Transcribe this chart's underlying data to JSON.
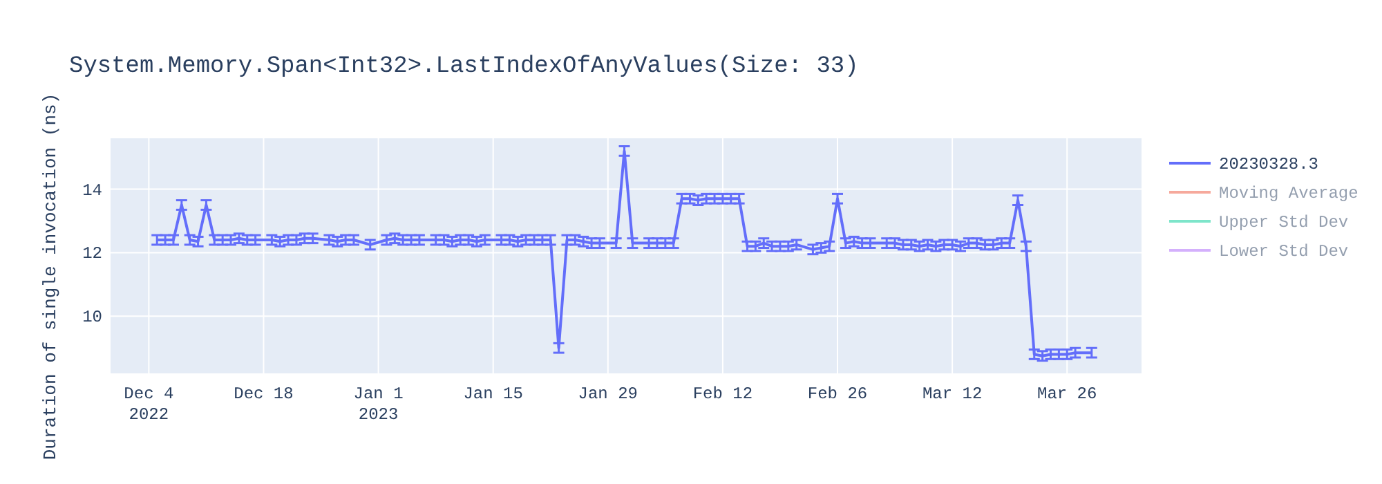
{
  "chart_data": {
    "type": "line",
    "title": "System.Memory.Span<Int32>.LastIndexOfAnyValues(Size: 33)",
    "ylabel": "Duration of single invocation (ns)",
    "xlim": [
      "2022-11-29T08:00",
      "2023-04-04T02:00"
    ],
    "xticks": [
      {
        "value": "2022-12-04",
        "label": "Dec 4\n2022"
      },
      {
        "value": "2022-12-18",
        "label": "Dec 18"
      },
      {
        "value": "2023-01-01",
        "label": "Jan 1\n2023"
      },
      {
        "value": "2023-01-15",
        "label": "Jan 15"
      },
      {
        "value": "2023-01-29",
        "label": "Jan 29"
      },
      {
        "value": "2023-02-12",
        "label": "Feb 12"
      },
      {
        "value": "2023-02-26",
        "label": "Feb 26"
      },
      {
        "value": "2023-03-12",
        "label": "Mar 12"
      },
      {
        "value": "2023-03-26",
        "label": "Mar 26"
      }
    ],
    "ylim": [
      8.2,
      15.6
    ],
    "yticks": [
      10,
      12,
      14
    ],
    "grid": true,
    "legend": "top right",
    "series": [
      {
        "name": "20230328.3",
        "color": "#636efa",
        "x": [
          "2022-12-05",
          "2022-12-06",
          "2022-12-07",
          "2022-12-08",
          "2022-12-09",
          "2022-12-10",
          "2022-12-11",
          "2022-12-12",
          "2022-12-13",
          "2022-12-14",
          "2022-12-15",
          "2022-12-16",
          "2022-12-17",
          "2022-12-19",
          "2022-12-20",
          "2022-12-21",
          "2022-12-22",
          "2022-12-23",
          "2022-12-24",
          "2022-12-26",
          "2022-12-27",
          "2022-12-28",
          "2022-12-29",
          "2022-12-31",
          "2023-01-02",
          "2023-01-03",
          "2023-01-04",
          "2023-01-05",
          "2023-01-06",
          "2023-01-08",
          "2023-01-09",
          "2023-01-10",
          "2023-01-11",
          "2023-01-12",
          "2023-01-13",
          "2023-01-14",
          "2023-01-16",
          "2023-01-17",
          "2023-01-18",
          "2023-01-19",
          "2023-01-20",
          "2023-01-21",
          "2023-01-22",
          "2023-01-23",
          "2023-01-24",
          "2023-01-25",
          "2023-01-26",
          "2023-01-27",
          "2023-01-28",
          "2023-01-30",
          "2023-01-31",
          "2023-02-01",
          "2023-02-03",
          "2023-02-04",
          "2023-02-05",
          "2023-02-06",
          "2023-02-07",
          "2023-02-08",
          "2023-02-09",
          "2023-02-10",
          "2023-02-11",
          "2023-02-12",
          "2023-02-13",
          "2023-02-14",
          "2023-02-15",
          "2023-02-16",
          "2023-02-17",
          "2023-02-18",
          "2023-02-19",
          "2023-02-20",
          "2023-02-21",
          "2023-02-23",
          "2023-02-24",
          "2023-02-25",
          "2023-02-26",
          "2023-02-27",
          "2023-02-28",
          "2023-03-01",
          "2023-03-02",
          "2023-03-04",
          "2023-03-05",
          "2023-03-06",
          "2023-03-07",
          "2023-03-08",
          "2023-03-09",
          "2023-03-10",
          "2023-03-11",
          "2023-03-12",
          "2023-03-13",
          "2023-03-14",
          "2023-03-15",
          "2023-03-16",
          "2023-03-17",
          "2023-03-18",
          "2023-03-19",
          "2023-03-20",
          "2023-03-21",
          "2023-03-22",
          "2023-03-23",
          "2023-03-24",
          "2023-03-25",
          "2023-03-26",
          "2023-03-27",
          "2023-03-29"
        ],
        "values": [
          12.4,
          12.4,
          12.4,
          13.5,
          12.4,
          12.35,
          13.5,
          12.4,
          12.4,
          12.4,
          12.45,
          12.4,
          12.4,
          12.4,
          12.35,
          12.4,
          12.4,
          12.45,
          12.45,
          12.4,
          12.35,
          12.4,
          12.4,
          12.25,
          12.4,
          12.45,
          12.4,
          12.4,
          12.4,
          12.4,
          12.4,
          12.35,
          12.4,
          12.4,
          12.35,
          12.4,
          12.4,
          12.4,
          12.35,
          12.4,
          12.4,
          12.4,
          12.4,
          9.0,
          12.4,
          12.4,
          12.35,
          12.3,
          12.3,
          12.3,
          15.2,
          12.3,
          12.3,
          12.3,
          12.3,
          12.3,
          13.7,
          13.7,
          13.65,
          13.7,
          13.7,
          13.7,
          13.7,
          13.7,
          12.2,
          12.2,
          12.3,
          12.2,
          12.2,
          12.2,
          12.25,
          12.1,
          12.15,
          12.2,
          13.7,
          12.3,
          12.35,
          12.3,
          12.3,
          12.3,
          12.3,
          12.25,
          12.25,
          12.2,
          12.25,
          12.2,
          12.25,
          12.25,
          12.2,
          12.3,
          12.3,
          12.25,
          12.25,
          12.3,
          12.3,
          13.65,
          12.2,
          8.8,
          8.75,
          8.8,
          8.8,
          8.8,
          8.85,
          8.85
        ],
        "errors": [
          0.15,
          0.15,
          0.15,
          0.15,
          0.15,
          0.15,
          0.15,
          0.15,
          0.15,
          0.15,
          0.15,
          0.15,
          0.15,
          0.15,
          0.15,
          0.15,
          0.15,
          0.15,
          0.15,
          0.15,
          0.15,
          0.15,
          0.15,
          0.15,
          0.15,
          0.15,
          0.15,
          0.15,
          0.15,
          0.15,
          0.15,
          0.15,
          0.15,
          0.15,
          0.15,
          0.15,
          0.15,
          0.15,
          0.15,
          0.15,
          0.15,
          0.15,
          0.15,
          0.15,
          0.15,
          0.15,
          0.15,
          0.15,
          0.15,
          0.15,
          0.15,
          0.15,
          0.15,
          0.15,
          0.15,
          0.15,
          0.15,
          0.15,
          0.15,
          0.15,
          0.15,
          0.15,
          0.15,
          0.15,
          0.15,
          0.15,
          0.15,
          0.15,
          0.15,
          0.15,
          0.15,
          0.15,
          0.15,
          0.15,
          0.15,
          0.15,
          0.15,
          0.15,
          0.15,
          0.15,
          0.15,
          0.15,
          0.15,
          0.15,
          0.15,
          0.15,
          0.15,
          0.15,
          0.15,
          0.15,
          0.15,
          0.15,
          0.15,
          0.15,
          0.15,
          0.15,
          0.15,
          0.15,
          0.15,
          0.15,
          0.15,
          0.15,
          0.15,
          0.15
        ]
      },
      {
        "name": "Moving Average",
        "color": "#ef553b"
      },
      {
        "name": "Upper Std Dev",
        "color": "#00cc96"
      },
      {
        "name": "Lower Std Dev",
        "color": "#ab63fa"
      }
    ]
  }
}
